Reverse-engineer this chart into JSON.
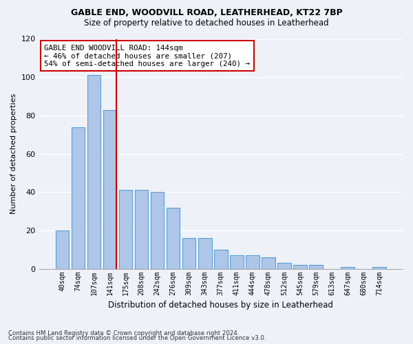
{
  "title1": "GABLE END, WOODVILL ROAD, LEATHERHEAD, KT22 7BP",
  "title2": "Size of property relative to detached houses in Leatherhead",
  "xlabel": "Distribution of detached houses by size in Leatherhead",
  "ylabel": "Number of detached properties",
  "categories": [
    "40sqm",
    "74sqm",
    "107sqm",
    "141sqm",
    "175sqm",
    "208sqm",
    "242sqm",
    "276sqm",
    "309sqm",
    "343sqm",
    "377sqm",
    "411sqm",
    "444sqm",
    "478sqm",
    "512sqm",
    "545sqm",
    "579sqm",
    "613sqm",
    "647sqm",
    "680sqm",
    "714sqm"
  ],
  "values": [
    20,
    74,
    101,
    83,
    41,
    41,
    40,
    32,
    16,
    16,
    10,
    7,
    7,
    6,
    3,
    2,
    2,
    0,
    1,
    0,
    1
  ],
  "bar_color": "#aec6e8",
  "bar_edge_color": "#5a9fd4",
  "vline_index": 3,
  "vline_color": "#cc0000",
  "annotation_title": "GABLE END WOODVILL ROAD: 144sqm",
  "annotation_line1": "← 46% of detached houses are smaller (207)",
  "annotation_line2": "54% of semi-detached houses are larger (240) →",
  "annotation_box_color": "#ffffff",
  "annotation_border_color": "#cc0000",
  "ylim": [
    0,
    120
  ],
  "yticks": [
    0,
    20,
    40,
    60,
    80,
    100,
    120
  ],
  "footer1": "Contains HM Land Registry data © Crown copyright and database right 2024.",
  "footer2": "Contains public sector information licensed under the Open Government Licence v3.0.",
  "bg_color": "#eef2f8",
  "grid_color": "#ffffff"
}
